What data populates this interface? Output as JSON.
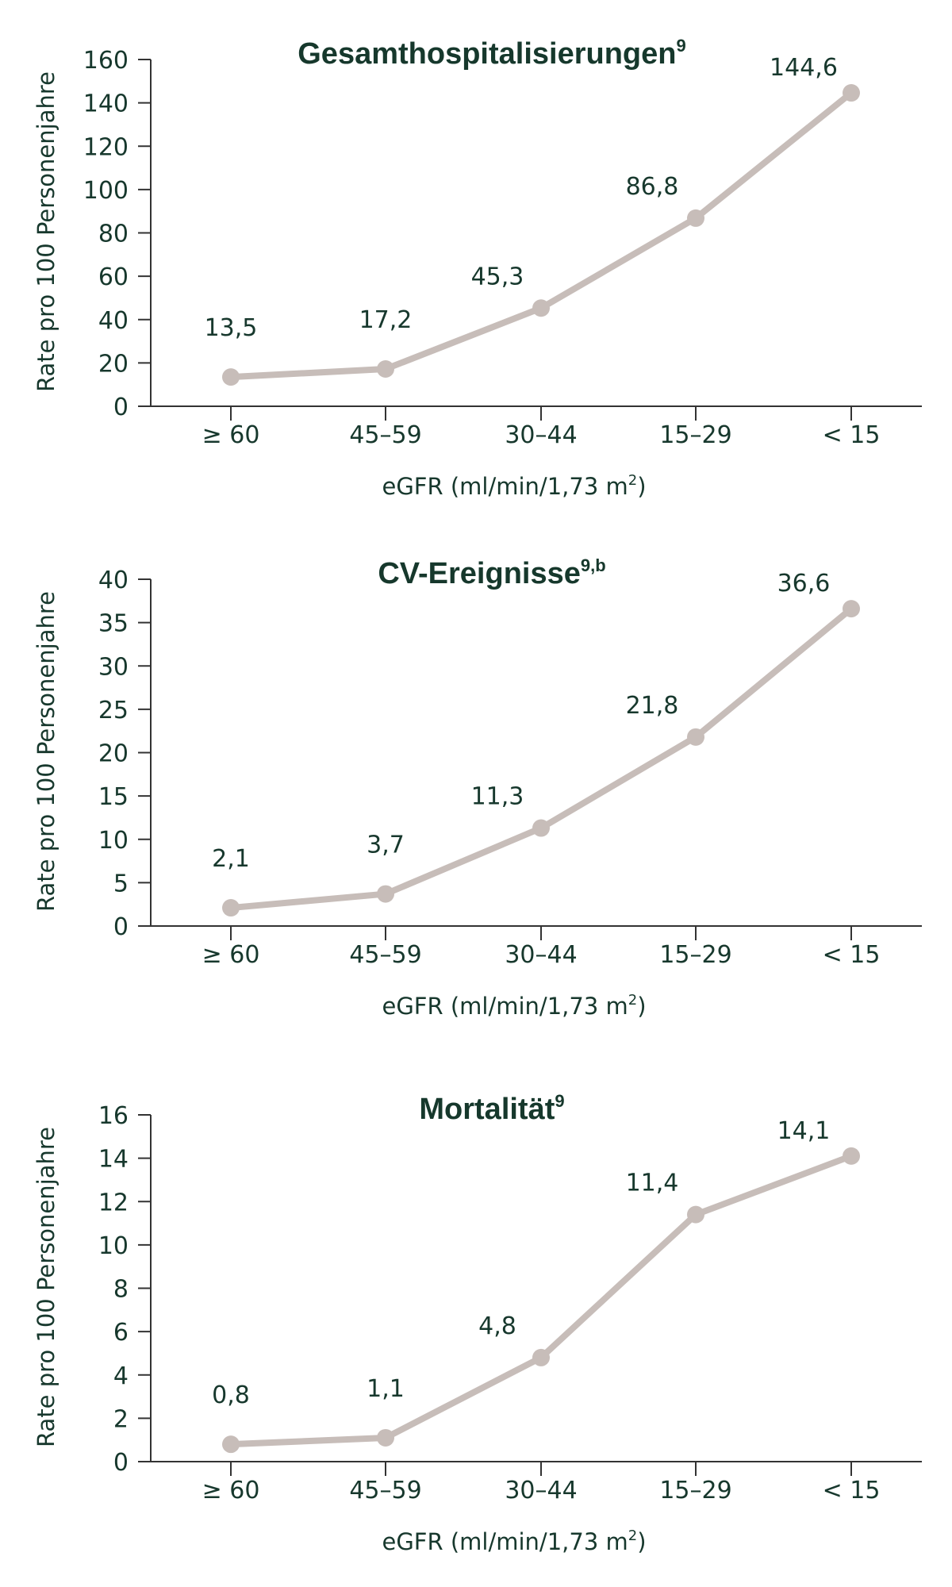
{
  "colors": {
    "text": "#17382d",
    "title": "#16382c",
    "line": "#c7bdb9",
    "axis": "#333333"
  },
  "chart_data": [
    {
      "type": "line",
      "title": "Gesamthospitalisierungen",
      "title_superscript": "9",
      "xlabel": "eGFR (ml/min/1,73 m",
      "xlabel_superscript": "2",
      "xlabel_suffix": ")",
      "ylabel": "Rate pro 100 Personenjahre",
      "categories": [
        "≥ 60",
        "45–59",
        "30–44",
        "15–29",
        "< 15"
      ],
      "values": [
        13.5,
        17.2,
        45.3,
        86.8,
        144.6
      ],
      "data_labels": [
        "13,5",
        "17,2",
        "45,3",
        "86,8",
        "144,6"
      ],
      "ylim": [
        0,
        160
      ],
      "yticks": [
        0,
        20,
        40,
        60,
        80,
        100,
        120,
        140,
        160
      ],
      "grid": false,
      "legend": false
    },
    {
      "type": "line",
      "title": "CV-Ereignisse",
      "title_superscript": "9,b",
      "xlabel": "eGFR (ml/min/1,73 m",
      "xlabel_superscript": "2",
      "xlabel_suffix": ")",
      "ylabel": "Rate pro 100 Personenjahre",
      "categories": [
        "≥ 60",
        "45–59",
        "30–44",
        "15–29",
        "< 15"
      ],
      "values": [
        2.1,
        3.7,
        11.3,
        21.8,
        36.6
      ],
      "data_labels": [
        "2,1",
        "3,7",
        "11,3",
        "21,8",
        "36,6"
      ],
      "ylim": [
        0,
        40
      ],
      "yticks": [
        0,
        5,
        10,
        15,
        20,
        25,
        30,
        35,
        40
      ],
      "grid": false,
      "legend": false
    },
    {
      "type": "line",
      "title": "Mortalität",
      "title_superscript": "9",
      "xlabel": "eGFR (ml/min/1,73 m",
      "xlabel_superscript": "2",
      "xlabel_suffix": ")",
      "ylabel": "Rate pro 100 Personenjahre",
      "categories": [
        "≥ 60",
        "45–59",
        "30–44",
        "15–29",
        "< 15"
      ],
      "values": [
        0.8,
        1.1,
        4.8,
        11.4,
        14.1
      ],
      "data_labels": [
        "0,8",
        "1,1",
        "4,8",
        "11,4",
        "14,1"
      ],
      "ylim": [
        0,
        16
      ],
      "yticks": [
        0,
        2,
        4,
        6,
        8,
        10,
        12,
        14,
        16
      ],
      "grid": false,
      "legend": false
    }
  ]
}
